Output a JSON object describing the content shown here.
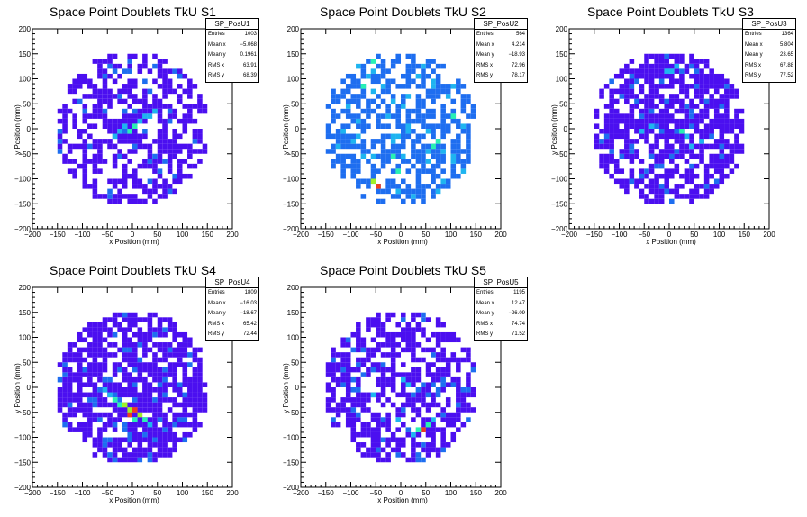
{
  "chart_data": [
    {
      "type": "heatmap",
      "title": "Space Point Doublets TkU S1",
      "xlabel": "x Position (mm)",
      "ylabel": "y Position (mm)",
      "xlim": [
        -200,
        200
      ],
      "ylim": [
        -200,
        200
      ],
      "xticks": [
        "−200",
        "−150",
        "−100",
        "−50",
        "0",
        "50",
        "100",
        "150",
        "200"
      ],
      "yticks": [
        "200",
        "150",
        "100",
        "50",
        "0",
        "−50",
        "−100",
        "−150",
        "−200"
      ],
      "stats": {
        "name": "SP_PosU1",
        "rows": [
          {
            "label": "Entries",
            "value": "1003"
          },
          {
            "label": "Mean x",
            "value": "−5.068"
          },
          {
            "label": "Mean y",
            "value": "0.1961"
          },
          {
            "label": "RMS x",
            "value": "63.91"
          },
          {
            "label": "RMS y",
            "value": "68.39"
          }
        ]
      },
      "cells": [
        [
          -20,
          0,
          2
        ],
        [
          -10,
          -10,
          3
        ],
        [
          0,
          0,
          3
        ],
        [
          20,
          20,
          2
        ],
        [
          40,
          30,
          2
        ],
        [
          -40,
          -20,
          2
        ],
        [
          10,
          10,
          2
        ],
        [
          30,
          20,
          2
        ],
        [
          -30,
          -10,
          2
        ]
      ]
    },
    {
      "type": "heatmap",
      "title": "Space Point Doublets TkU S2",
      "xlabel": "x Position (mm)",
      "ylabel": "y Position (mm)",
      "xlim": [
        -200,
        200
      ],
      "ylim": [
        -200,
        200
      ],
      "xticks": [
        "−200",
        "−150",
        "−100",
        "−50",
        "0",
        "50",
        "100",
        "150",
        "200"
      ],
      "yticks": [
        "200",
        "150",
        "100",
        "50",
        "0",
        "−50",
        "−100",
        "−150",
        "−200"
      ],
      "stats": {
        "name": "SP_PosU2",
        "rows": [
          {
            "label": "Entries",
            "value": "564"
          },
          {
            "label": "Mean x",
            "value": "4.214"
          },
          {
            "label": "Mean y",
            "value": "−18.93"
          },
          {
            "label": "RMS x",
            "value": "72.96"
          },
          {
            "label": "RMS y",
            "value": "78.17"
          }
        ]
      },
      "cells": [
        [
          -50,
          -120,
          5
        ],
        [
          -60,
          -110,
          4
        ],
        [
          60,
          -40,
          3
        ],
        [
          70,
          -30,
          3
        ],
        [
          -20,
          -60,
          3
        ],
        [
          100,
          20,
          3
        ],
        [
          -80,
          80,
          3
        ],
        [
          -60,
          130,
          3
        ],
        [
          -10,
          -90,
          3
        ]
      ]
    },
    {
      "type": "heatmap",
      "title": "Space Point Doublets TkU S3",
      "xlabel": "x Position (mm)",
      "ylabel": "y Position (mm)",
      "xlim": [
        -200,
        200
      ],
      "ylim": [
        -200,
        200
      ],
      "xticks": [
        "−200",
        "−150",
        "−100",
        "−50",
        "0",
        "50",
        "100",
        "150",
        "200"
      ],
      "yticks": [
        "200",
        "150",
        "100",
        "50",
        "0",
        "−50",
        "−100",
        "−150",
        "−200"
      ],
      "stats": {
        "name": "SP_PosU3",
        "rows": [
          {
            "label": "Entries",
            "value": "1364"
          },
          {
            "label": "Mean x",
            "value": "5.804"
          },
          {
            "label": "Mean y",
            "value": "23.65"
          },
          {
            "label": "RMS x",
            "value": "67.88"
          },
          {
            "label": "RMS y",
            "value": "77.52"
          }
        ]
      },
      "cells": [
        [
          20,
          -10,
          3
        ],
        [
          30,
          -20,
          2
        ],
        [
          0,
          110,
          2
        ],
        [
          10,
          120,
          2
        ],
        [
          -40,
          0,
          2
        ],
        [
          40,
          -40,
          2
        ],
        [
          -60,
          -10,
          2
        ],
        [
          60,
          -30,
          2
        ],
        [
          -10,
          110,
          2
        ]
      ]
    },
    {
      "type": "heatmap",
      "title": "Space Point Doublets TkU S4",
      "xlabel": "x Position (mm)",
      "ylabel": "y Position (mm)",
      "xlim": [
        -200,
        200
      ],
      "ylim": [
        -200,
        200
      ],
      "xticks": [
        "−200",
        "−150",
        "−100",
        "−50",
        "0",
        "50",
        "100",
        "150",
        "200"
      ],
      "yticks": [
        "200",
        "150",
        "100",
        "50",
        "0",
        "−50",
        "−100",
        "−150",
        "−200"
      ],
      "stats": {
        "name": "SP_PosU4",
        "rows": [
          {
            "label": "Entries",
            "value": "1809"
          },
          {
            "label": "Mean x",
            "value": "−16.03"
          },
          {
            "label": "Mean y",
            "value": "−18.67"
          },
          {
            "label": "RMS x",
            "value": "65.42"
          },
          {
            "label": "RMS y",
            "value": "72.44"
          }
        ]
      },
      "cells": [
        [
          0,
          -50,
          5
        ],
        [
          -10,
          -60,
          5
        ],
        [
          10,
          -60,
          4
        ],
        [
          -20,
          -40,
          4
        ],
        [
          -30,
          -40,
          3
        ],
        [
          20,
          -70,
          3
        ],
        [
          -40,
          -30,
          3
        ],
        [
          -50,
          -20,
          2
        ],
        [
          30,
          -80,
          2
        ],
        [
          -10,
          -50,
          4
        ],
        [
          0,
          -70,
          3
        ],
        [
          -60,
          -10,
          2
        ]
      ]
    },
    {
      "type": "heatmap",
      "title": "Space Point Doublets TkU S5",
      "xlabel": "x Position (mm)",
      "ylabel": "y Position (mm)",
      "xlim": [
        -200,
        200
      ],
      "ylim": [
        -200,
        200
      ],
      "xticks": [
        "−200",
        "−150",
        "−100",
        "−50",
        "0",
        "50",
        "100",
        "150",
        "200"
      ],
      "yticks": [
        "200",
        "150",
        "100",
        "50",
        "0",
        "−50",
        "−100",
        "−150",
        "−200"
      ],
      "stats": {
        "name": "SP_PosU5",
        "rows": [
          {
            "label": "Entries",
            "value": "1195"
          },
          {
            "label": "Mean x",
            "value": "12.47"
          },
          {
            "label": "Mean y",
            "value": "−26.09"
          },
          {
            "label": "RMS x",
            "value": "74.74"
          },
          {
            "label": "RMS y",
            "value": "71.52"
          }
        ]
      },
      "cells": [
        [
          40,
          -90,
          5
        ],
        [
          30,
          -90,
          3
        ],
        [
          50,
          -80,
          3
        ],
        [
          -10,
          -70,
          2
        ],
        [
          0,
          10,
          2
        ],
        [
          10,
          0,
          2
        ],
        [
          60,
          -70,
          2
        ],
        [
          20,
          -100,
          2
        ],
        [
          -60,
          -20,
          2
        ]
      ]
    }
  ],
  "colors": {
    "palette": [
      "#4b0ff0",
      "#1e6ef0",
      "#1eb4f0",
      "#28f0b4",
      "#a0f028",
      "#f03c1e"
    ],
    "axis": "#000000",
    "background": "#ffffff"
  }
}
